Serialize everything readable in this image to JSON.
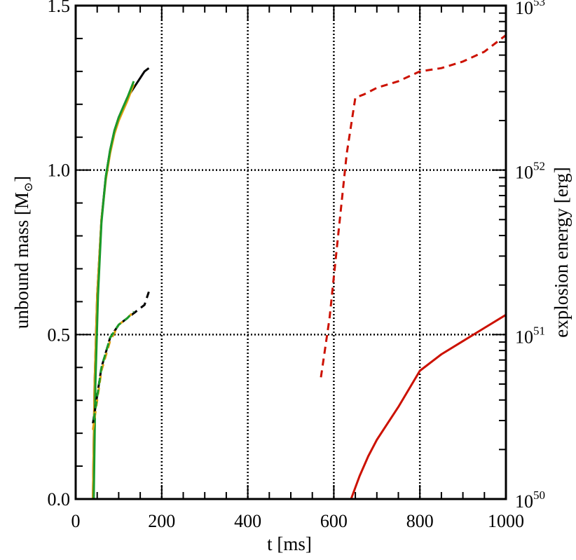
{
  "chart_data": {
    "type": "line",
    "xlabel": "t [ms]",
    "ylabel_left": "unbound mass [M",
    "ylabel_left_symbol": "⊙",
    "ylabel_left_close": "]",
    "ylabel_right": "explosion energy [erg]",
    "xlim": [
      0,
      1000
    ],
    "ylim_left": [
      0.0,
      1.5
    ],
    "ylim_right_log10": [
      50,
      53
    ],
    "x_ticks": [
      0,
      200,
      400,
      600,
      800,
      1000
    ],
    "x_tick_labels": [
      "0",
      "200",
      "400",
      "600",
      "800",
      "1000"
    ],
    "y_ticks_left": [
      0.0,
      0.5,
      1.0,
      1.5
    ],
    "y_tick_labels_left": [
      "0.0",
      "0.5",
      "1.0",
      "1.5"
    ],
    "y_ticks_right_exp": [
      50,
      51,
      52,
      53
    ],
    "y_tick_labels_right_base": "10",
    "y_tick_labels_right_exp": [
      "50",
      "51",
      "52",
      "53"
    ],
    "reference_lines": {
      "vertical_x": [
        200,
        400,
        600,
        800
      ],
      "horizontal_y": [
        0.5,
        1.0
      ],
      "style": "dotted"
    },
    "colors": {
      "black": "#000000",
      "orange": "#e0a010",
      "green": "#1a9a2a",
      "red": "#cc1100"
    },
    "series": [
      {
        "color": "black",
        "style": "solid",
        "axis": "left",
        "x": [
          40,
          44,
          50,
          60,
          70,
          80,
          90,
          100,
          110,
          120,
          130,
          140,
          150,
          160,
          170
        ],
        "y": [
          0.0,
          0.35,
          0.62,
          0.85,
          0.98,
          1.06,
          1.12,
          1.16,
          1.19,
          1.22,
          1.24,
          1.26,
          1.28,
          1.3,
          1.31
        ]
      },
      {
        "color": "orange",
        "style": "solid",
        "axis": "left",
        "x": [
          40,
          44,
          50,
          60,
          70,
          80,
          90,
          100,
          110,
          120,
          135
        ],
        "y": [
          0.0,
          0.35,
          0.62,
          0.85,
          0.97,
          1.05,
          1.11,
          1.15,
          1.18,
          1.21,
          1.26
        ]
      },
      {
        "color": "green",
        "style": "solid",
        "axis": "left",
        "x": [
          42,
          46,
          52,
          60,
          70,
          80,
          90,
          100,
          110,
          120,
          135
        ],
        "y": [
          0.0,
          0.35,
          0.62,
          0.84,
          0.98,
          1.06,
          1.12,
          1.16,
          1.19,
          1.22,
          1.27
        ]
      },
      {
        "color": "black",
        "style": "dashed",
        "axis": "left",
        "x": [
          40,
          60,
          80,
          100,
          120,
          140,
          160,
          170
        ],
        "y": [
          0.23,
          0.4,
          0.49,
          0.53,
          0.55,
          0.57,
          0.59,
          0.63
        ]
      },
      {
        "color": "orange",
        "style": "dashed",
        "axis": "left",
        "x": [
          40,
          60,
          80,
          100,
          120,
          135
        ],
        "y": [
          0.21,
          0.39,
          0.48,
          0.53,
          0.55,
          0.57
        ]
      },
      {
        "color": "green",
        "style": "dashed",
        "axis": "left",
        "x": [
          42,
          60,
          80,
          100,
          120,
          135
        ],
        "y": [
          0.24,
          0.4,
          0.49,
          0.53,
          0.55,
          0.57
        ]
      },
      {
        "color": "red",
        "style": "dashed",
        "axis": "left",
        "x": [
          570,
          590,
          610,
          630,
          650,
          670,
          700,
          750,
          800,
          850,
          900,
          950,
          1000
        ],
        "y": [
          0.37,
          0.55,
          0.8,
          1.05,
          1.22,
          1.23,
          1.25,
          1.27,
          1.3,
          1.31,
          1.33,
          1.36,
          1.41
        ]
      },
      {
        "color": "red",
        "style": "solid",
        "axis": "left",
        "x": [
          640,
          660,
          680,
          700,
          720,
          750,
          800,
          850,
          900,
          950,
          1000
        ],
        "y": [
          0.0,
          0.07,
          0.13,
          0.18,
          0.22,
          0.28,
          0.39,
          0.44,
          0.48,
          0.52,
          0.56
        ]
      }
    ]
  }
}
